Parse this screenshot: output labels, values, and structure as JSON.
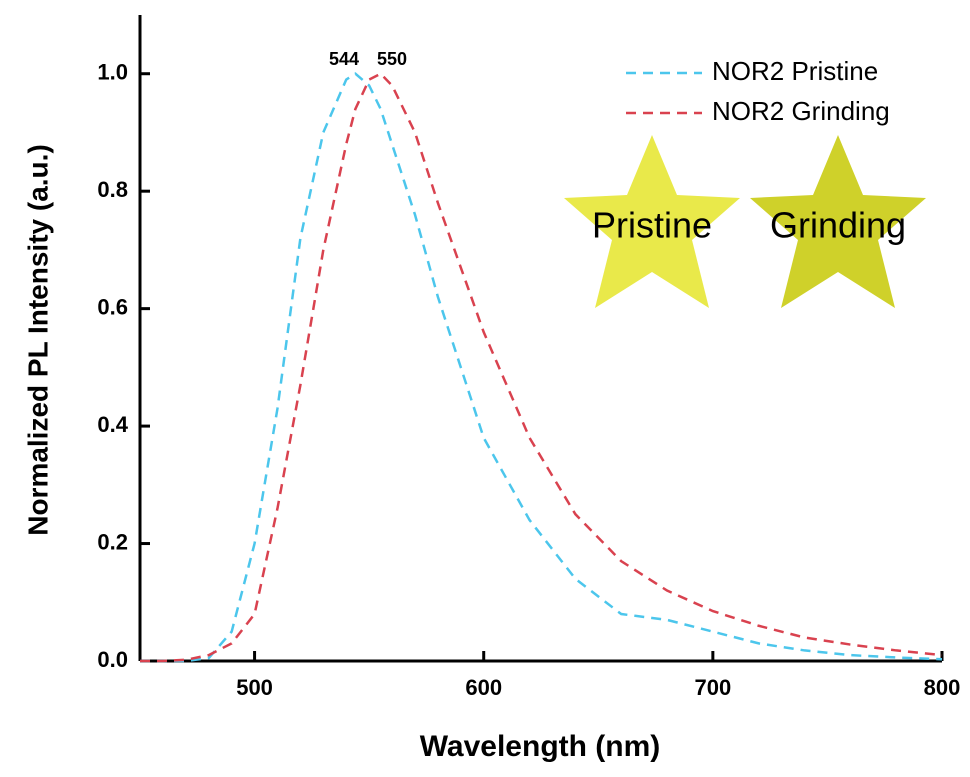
{
  "chart_data": {
    "type": "line",
    "x_label": "Wavelength (nm)",
    "y_label": "Normalized PL Intensity (a.u.)",
    "x": [
      450,
      460,
      470,
      480,
      490,
      500,
      510,
      520,
      530,
      540,
      544,
      550,
      555,
      560,
      570,
      580,
      590,
      600,
      620,
      640,
      660,
      680,
      700,
      720,
      740,
      760,
      780,
      800
    ],
    "series": [
      {
        "name": "NOR2 Pristine",
        "color": "#4cc6ec",
        "values": [
          0,
          0,
          0,
          0.005,
          0.05,
          0.2,
          0.43,
          0.72,
          0.9,
          0.99,
          1.0,
          0.98,
          0.94,
          0.88,
          0.76,
          0.62,
          0.5,
          0.38,
          0.24,
          0.14,
          0.08,
          0.07,
          0.05,
          0.03,
          0.018,
          0.01,
          0.006,
          0.003
        ]
      },
      {
        "name": "NOR2 Grinding",
        "color": "#d9424f",
        "values": [
          0,
          0,
          0.002,
          0.01,
          0.03,
          0.08,
          0.26,
          0.47,
          0.7,
          0.88,
          0.94,
          0.99,
          1.0,
          0.98,
          0.9,
          0.78,
          0.67,
          0.56,
          0.38,
          0.25,
          0.17,
          0.12,
          0.085,
          0.06,
          0.04,
          0.028,
          0.018,
          0.01
        ]
      }
    ],
    "annotations": [
      "544",
      "550"
    ],
    "inset_labels": [
      "Pristine",
      "Grinding"
    ],
    "xlim": [
      450,
      800
    ],
    "xticks": [
      500,
      600,
      700,
      800
    ],
    "ylim": [
      0,
      1.1
    ],
    "yticks": [
      {
        "value": 0,
        "label": "0.0"
      },
      0.2,
      0.4,
      0.6,
      0.8,
      {
        "value": 1,
        "label": "1.0"
      }
    ],
    "legend": "top-right",
    "dashed": true
  }
}
